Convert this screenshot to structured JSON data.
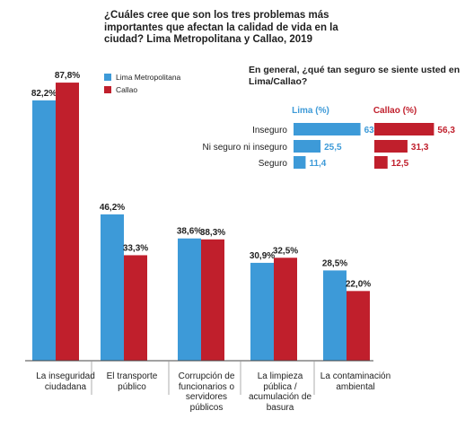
{
  "title": "¿Cuáles cree que son los tres problemas más importantes que afectan la calidad de vida en la ciudad? Lima Metropolitana y Callao, 2019",
  "colors": {
    "lima": "#3d9ad8",
    "callao": "#c01f2c"
  },
  "legend": [
    "Lima Metropolitana",
    "Callao"
  ],
  "chart_data": [
    {
      "type": "bar",
      "title": "¿Cuáles cree que son los tres problemas más importantes que afectan la calidad de vida en la ciudad? Lima Metropolitana y Callao, 2019",
      "categories": [
        "La inseguridad ciudadana",
        "El transporte público",
        "Corrupción de funcionarios o servidores públicos",
        "La limpieza pública / acumulación de basura",
        "La contaminación ambiental"
      ],
      "series": [
        {
          "name": "Lima Metropolitana",
          "values": [
            82.2,
            46.2,
            38.6,
            30.9,
            28.5
          ],
          "labels": [
            "82,2%",
            "46,2%",
            "38,6%",
            "30,9%",
            "28,5%"
          ]
        },
        {
          "name": "Callao",
          "values": [
            87.8,
            33.3,
            38.3,
            32.5,
            22.0
          ],
          "labels": [
            "87,8%",
            "33,3%",
            "38,3%",
            "32,5%",
            "22,0%"
          ]
        }
      ],
      "ylim": [
        0,
        90
      ],
      "legend_position": "top-left",
      "grid": false
    },
    {
      "type": "bar",
      "orientation": "horizontal",
      "title": "En general, ¿qué tan seguro se siente usted en Lima/Callao?",
      "categories": [
        "Inseguro",
        "Ni seguro ni inseguro",
        "Seguro"
      ],
      "series": [
        {
          "name": "Lima (%)",
          "values": [
            63.2,
            25.5,
            11.4
          ],
          "labels": [
            "63,2",
            "25,5",
            "11,4"
          ]
        },
        {
          "name": "Callao (%)",
          "values": [
            56.3,
            31.3,
            12.5
          ],
          "labels": [
            "56,3",
            "31,3",
            "12,5"
          ]
        }
      ]
    }
  ]
}
